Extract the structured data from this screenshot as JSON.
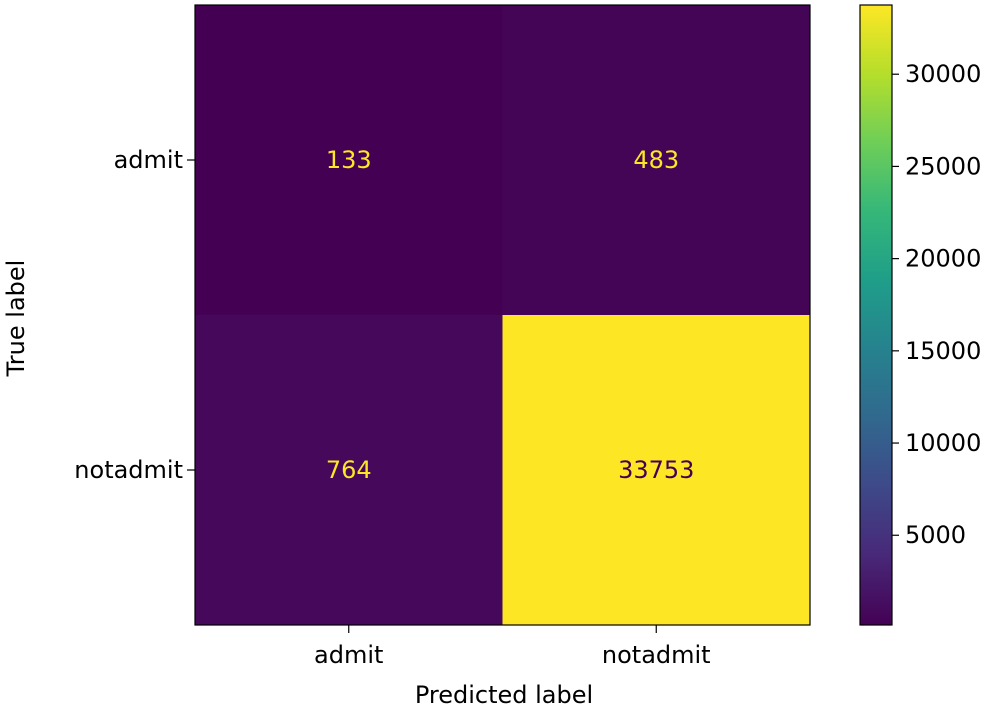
{
  "chart_data": {
    "type": "heatmap",
    "title": "",
    "xlabel": "Predicted label",
    "ylabel": "True label",
    "x_categories": [
      "admit",
      "notadmit"
    ],
    "y_categories": [
      "admit",
      "notadmit"
    ],
    "values": [
      [
        133,
        483
      ],
      [
        764,
        33753
      ]
    ],
    "colormap": "viridis",
    "colorbar": {
      "range": [
        133,
        33753
      ],
      "ticks": [
        5000,
        10000,
        15000,
        20000,
        25000,
        30000
      ],
      "tick_labels": [
        "5000",
        "10000",
        "15000",
        "20000",
        "25000",
        "30000"
      ]
    },
    "grid": false,
    "colors": {
      "low": "#440154",
      "high": "#fde725",
      "text_on_dark": "#fde725",
      "text_on_light": "#440154"
    }
  }
}
